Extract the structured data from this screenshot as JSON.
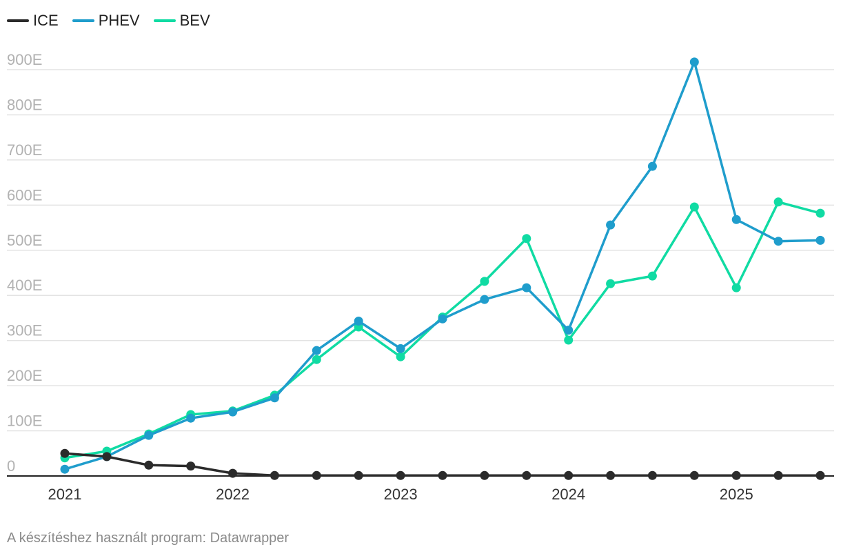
{
  "legend": [
    {
      "label": "ICE",
      "color": "#2b2b2b"
    },
    {
      "label": "PHEV",
      "color": "#1f9dcc"
    },
    {
      "label": "BEV",
      "color": "#10dba3"
    }
  ],
  "footer": {
    "credit": "A készítéshez használt program: Datawrapper"
  },
  "chart_data": {
    "type": "line",
    "title": "",
    "xlabel": "",
    "ylabel": "",
    "ylim": [
      0,
      900
    ],
    "y_ticks": [
      {
        "value": 900,
        "label": "900E"
      },
      {
        "value": 800,
        "label": "800E"
      },
      {
        "value": 700,
        "label": "700E"
      },
      {
        "value": 600,
        "label": "600E"
      },
      {
        "value": 500,
        "label": "500E"
      },
      {
        "value": 400,
        "label": "400E"
      },
      {
        "value": 300,
        "label": "300E"
      },
      {
        "value": 200,
        "label": "200E"
      },
      {
        "value": 100,
        "label": "100E"
      },
      {
        "value": 0,
        "label": "0"
      }
    ],
    "x_ticks": [
      {
        "value": 2021,
        "label": "2021"
      },
      {
        "value": 2022,
        "label": "2022"
      },
      {
        "value": 2023,
        "label": "2023"
      },
      {
        "value": 2024,
        "label": "2024"
      },
      {
        "value": 2025,
        "label": "2025"
      }
    ],
    "xlim": [
      2021,
      2025.5
    ],
    "x": [
      2021,
      2021.25,
      2021.5,
      2021.75,
      2022,
      2022.25,
      2022.5,
      2022.75,
      2023,
      2023.25,
      2023.5,
      2023.75,
      2024,
      2024.25,
      2024.5,
      2024.75,
      2025,
      2025.25,
      2025.5
    ],
    "grid": true,
    "legend_position": "top-left",
    "series": [
      {
        "name": "ICE",
        "color": "#2b2b2b",
        "values": [
          50,
          43,
          24,
          22,
          6,
          1,
          1,
          1,
          1,
          1,
          1,
          1,
          1,
          1,
          1,
          1,
          1,
          1,
          1
        ]
      },
      {
        "name": "PHEV",
        "color": "#1f9dcc",
        "values": [
          15,
          43,
          90,
          128,
          142,
          173,
          278,
          343,
          282,
          348,
          391,
          417,
          323,
          556,
          686,
          917,
          568,
          520,
          522
        ]
      },
      {
        "name": "BEV",
        "color": "#10dba3",
        "values": [
          40,
          55,
          93,
          136,
          144,
          179,
          258,
          330,
          264,
          352,
          431,
          526,
          301,
          426,
          443,
          596,
          417,
          607,
          582
        ]
      }
    ]
  }
}
